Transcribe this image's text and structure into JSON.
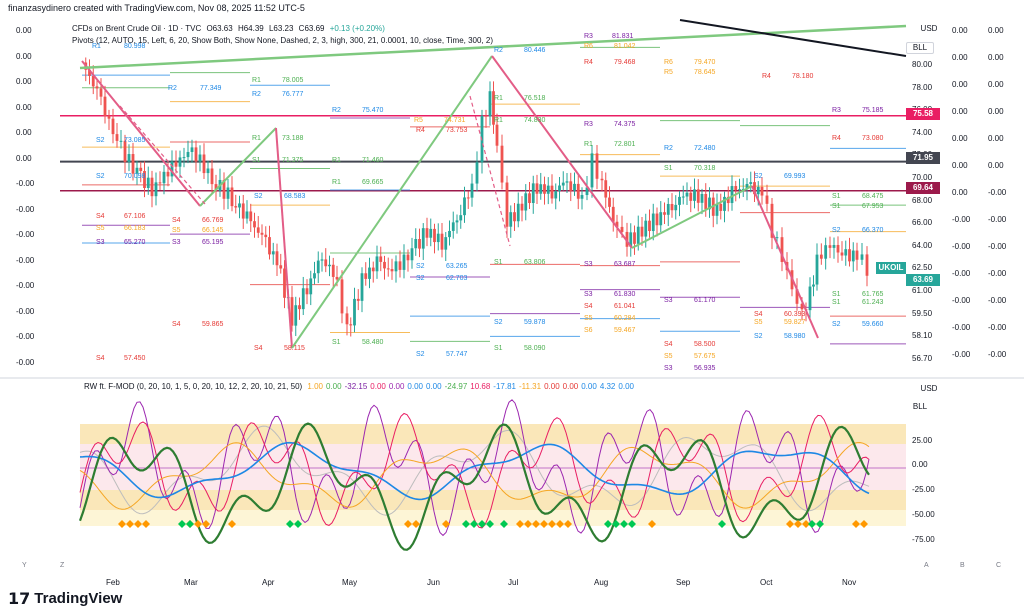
{
  "header": {
    "caption": "finanzasydinero created with TradingView.com, Nov 08, 2025 11:52 UTC-5"
  },
  "legend": {
    "symbol": "CFDs on Brent Crude Oil · 1D · TVC",
    "open": "O63.63",
    "high": "H64.39",
    "low": "L63.23",
    "close": "C63.69",
    "change": "+0.13 (+0.20%)",
    "pivots": "Pivots (12, AUTO, 15, Left, 6, 20, Show Both, Show None, Dashed, 2, 3, high, 300, 21, 0.0001, 10, close, Time, 300, 2)",
    "osc_name": "RW ft. F-MOD (0, 20, 10, 1, 5, 0, 20, 10, 12, 2, 20, 10, 21, 50)",
    "osc_values": [
      {
        "v": "1.00",
        "c": "#f5a623"
      },
      {
        "v": "0.00",
        "c": "#4caf50"
      },
      {
        "v": "-32.15",
        "c": "#7b1fa2"
      },
      {
        "v": "0.00",
        "c": "#e91e63"
      },
      {
        "v": "0.00",
        "c": "#9c27b0"
      },
      {
        "v": "0.00",
        "c": "#1e88e5"
      },
      {
        "v": "0.00",
        "c": "#1e88e5"
      },
      {
        "v": "-24.97",
        "c": "#4caf50"
      },
      {
        "v": "10.68",
        "c": "#e91e63"
      },
      {
        "v": "-17.81",
        "c": "#1e88e5"
      },
      {
        "v": "-11.31",
        "c": "#f5a623"
      },
      {
        "v": "0.00",
        "c": "#e53935"
      },
      {
        "v": "0.00",
        "c": "#e53935"
      },
      {
        "v": "0.00",
        "c": "#1e88e5"
      },
      {
        "v": "4.32",
        "c": "#1e88e5"
      },
      {
        "v": "0.00",
        "c": "#1e88e5"
      }
    ]
  },
  "price_axis": {
    "currency": "USD",
    "unit": "BLL",
    "ticks": [
      "80.00",
      "78.00",
      "76.00",
      "74.00",
      "72.00",
      "70.00",
      "68.00",
      "66.00",
      "64.00",
      "62.50",
      "61.00",
      "59.50",
      "58.10",
      "56.70"
    ],
    "tags": [
      {
        "label": "75.58",
        "color": "#e91e63"
      },
      {
        "label": "71.95",
        "color": "#434651"
      },
      {
        "label": "69.64",
        "color": "#9c1a4b"
      },
      {
        "label": "UKOIL",
        "color": "#26a69a"
      },
      {
        "label": "63.69",
        "color": "#26a69a"
      }
    ]
  },
  "osc_axis": {
    "currency": "USD",
    "unit": "BLL",
    "ticks": [
      "25.00",
      "0.00",
      "-25.00",
      "-50.00",
      "-75.00"
    ]
  },
  "left_levels": [
    "0.00",
    "0.00",
    "0.00",
    "0.00",
    "0.00",
    "0.00",
    "-0.00",
    "-0.00",
    "-0.00",
    "-0.00",
    "-0.00",
    "-0.00",
    "-0.00",
    "-0.00"
  ],
  "right_levels_a": [
    "0.00",
    "0.00",
    "0.00",
    "0.00",
    "0.00",
    "0.00",
    "0.00",
    "-0.00",
    "-0.00",
    "-0.00",
    "-0.00",
    "-0.00",
    "-0.00"
  ],
  "right_levels_b": [
    "0.00",
    "0.00",
    "0.00",
    "0.00",
    "0.00",
    "0.00",
    "-0.00",
    "-0.00",
    "-0.00",
    "-0.00",
    "-0.00",
    "-0.00",
    "-0.00"
  ],
  "time_axis": [
    "Feb",
    "Mar",
    "Apr",
    "May",
    "Jun",
    "Jul",
    "Aug",
    "Sep",
    "Oct",
    "Nov"
  ],
  "corner_letters": [
    "Y",
    "Z",
    "A",
    "B",
    "C"
  ],
  "pivot_labels": [
    {
      "t": "R1",
      "c": "#1e88e5"
    },
    {
      "t": "80.998",
      "c": "#1e88e5"
    },
    {
      "t": "R2",
      "c": "#1e88e5"
    },
    {
      "t": "80.446",
      "c": "#1e88e5"
    },
    {
      "t": "R3",
      "c": "#7b1fa2"
    },
    {
      "t": "81.831",
      "c": "#7b1fa2"
    },
    {
      "t": "R6",
      "c": "#f5a623"
    },
    {
      "t": "81.042",
      "c": "#f5a623"
    },
    {
      "t": "R4",
      "c": "#e53935"
    },
    {
      "t": "79.468",
      "c": "#e53935"
    },
    {
      "t": "R6",
      "c": "#f5a623"
    },
    {
      "t": "79.470",
      "c": "#f5a623"
    },
    {
      "t": "R5",
      "c": "#f5a623"
    },
    {
      "t": "78.645",
      "c": "#f5a623"
    },
    {
      "t": "R4",
      "c": "#e53935"
    },
    {
      "t": "78.180",
      "c": "#e53935"
    },
    {
      "t": "R1",
      "c": "#4caf50"
    },
    {
      "t": "78.005",
      "c": "#4caf50"
    },
    {
      "t": "R2",
      "c": "#1e88e5"
    },
    {
      "t": "77.349",
      "c": "#1e88e5"
    },
    {
      "t": "R2",
      "c": "#1e88e5"
    },
    {
      "t": "76.777",
      "c": "#1e88e5"
    },
    {
      "t": "R1",
      "c": "#4caf50"
    },
    {
      "t": "76.518",
      "c": "#4caf50"
    },
    {
      "t": "R2",
      "c": "#1e88e5"
    },
    {
      "t": "75.470",
      "c": "#1e88e5"
    },
    {
      "t": "R3",
      "c": "#7b1fa2"
    },
    {
      "t": "75.185",
      "c": "#7b1fa2"
    },
    {
      "t": "R1",
      "c": "#4caf50"
    },
    {
      "t": "74.830",
      "c": "#4caf50"
    },
    {
      "t": "R5",
      "c": "#f5a623"
    },
    {
      "t": "74.731",
      "c": "#f5a623"
    },
    {
      "t": "R3",
      "c": "#7b1fa2"
    },
    {
      "t": "74.375",
      "c": "#7b1fa2"
    },
    {
      "t": "R4",
      "c": "#e53935"
    },
    {
      "t": "73.753",
      "c": "#e53935"
    },
    {
      "t": "R1",
      "c": "#4caf50"
    },
    {
      "t": "73.188",
      "c": "#4caf50"
    },
    {
      "t": "S2",
      "c": "#1e88e5"
    },
    {
      "t": "73.085",
      "c": "#1e88e5"
    },
    {
      "t": "R4",
      "c": "#e53935"
    },
    {
      "t": "73.080",
      "c": "#e53935"
    },
    {
      "t": "R1",
      "c": "#4caf50"
    },
    {
      "t": "72.801",
      "c": "#4caf50"
    },
    {
      "t": "R2",
      "c": "#1e88e5"
    },
    {
      "t": "72.480",
      "c": "#1e88e5"
    },
    {
      "t": "S1",
      "c": "#4caf50"
    },
    {
      "t": "71.375",
      "c": "#4caf50"
    },
    {
      "t": "R1",
      "c": "#4caf50"
    },
    {
      "t": "71.460",
      "c": "#4caf50"
    },
    {
      "t": "S1",
      "c": "#4caf50"
    },
    {
      "t": "70.318",
      "c": "#4caf50"
    },
    {
      "t": "S2",
      "c": "#1e88e5"
    },
    {
      "t": "70.098",
      "c": "#1e88e5"
    },
    {
      "t": "R1",
      "c": "#4caf50"
    },
    {
      "t": "69.665",
      "c": "#4caf50"
    },
    {
      "t": "S2",
      "c": "#1e88e5"
    },
    {
      "t": "69.993",
      "c": "#1e88e5"
    },
    {
      "t": "S2",
      "c": "#1e88e5"
    },
    {
      "t": "68.583",
      "c": "#1e88e5"
    },
    {
      "t": "S1",
      "c": "#4caf50"
    },
    {
      "t": "68.475",
      "c": "#4caf50"
    },
    {
      "t": "S1",
      "c": "#4caf50"
    },
    {
      "t": "67.953",
      "c": "#4caf50"
    },
    {
      "t": "S4",
      "c": "#e53935"
    },
    {
      "t": "67.106",
      "c": "#e53935"
    },
    {
      "t": "S4",
      "c": "#e53935"
    },
    {
      "t": "66.769",
      "c": "#e53935"
    },
    {
      "t": "S2",
      "c": "#1e88e5"
    },
    {
      "t": "66.370",
      "c": "#1e88e5"
    },
    {
      "t": "S5",
      "c": "#f5a623"
    },
    {
      "t": "66.183",
      "c": "#f5a623"
    },
    {
      "t": "S5",
      "c": "#f5a623"
    },
    {
      "t": "66.145",
      "c": "#f5a623"
    },
    {
      "t": "S3",
      "c": "#7b1fa2"
    },
    {
      "t": "65.270",
      "c": "#7b1fa2"
    },
    {
      "t": "S3",
      "c": "#7b1fa2"
    },
    {
      "t": "65.195",
      "c": "#7b1fa2"
    },
    {
      "t": "S1",
      "c": "#4caf50"
    },
    {
      "t": "63.806",
      "c": "#4caf50"
    },
    {
      "t": "S3",
      "c": "#7b1fa2"
    },
    {
      "t": "63.687",
      "c": "#7b1fa2"
    },
    {
      "t": "S2",
      "c": "#1e88e5"
    },
    {
      "t": "63.265",
      "c": "#1e88e5"
    },
    {
      "t": "S2",
      "c": "#1e88e5"
    },
    {
      "t": "62.703",
      "c": "#1e88e5"
    },
    {
      "t": "S3",
      "c": "#7b1fa2"
    },
    {
      "t": "61.830",
      "c": "#7b1fa2"
    },
    {
      "t": "S1",
      "c": "#4caf50"
    },
    {
      "t": "61.765",
      "c": "#4caf50"
    },
    {
      "t": "S3",
      "c": "#7b1fa2"
    },
    {
      "t": "61.170",
      "c": "#7b1fa2"
    },
    {
      "t": "S1",
      "c": "#4caf50"
    },
    {
      "t": "61.243",
      "c": "#4caf50"
    },
    {
      "t": "S4",
      "c": "#e53935"
    },
    {
      "t": "61.041",
      "c": "#e53935"
    },
    {
      "t": "S4",
      "c": "#e53935"
    },
    {
      "t": "60.393",
      "c": "#e53935"
    },
    {
      "t": "S5",
      "c": "#f5a623"
    },
    {
      "t": "60.284",
      "c": "#f5a623"
    },
    {
      "t": "S4",
      "c": "#e53935"
    },
    {
      "t": "59.865",
      "c": "#e53935"
    },
    {
      "t": "S2",
      "c": "#1e88e5"
    },
    {
      "t": "59.878",
      "c": "#1e88e5"
    },
    {
      "t": "S5",
      "c": "#f5a623"
    },
    {
      "t": "59.827",
      "c": "#f5a623"
    },
    {
      "t": "S2",
      "c": "#1e88e5"
    },
    {
      "t": "59.660",
      "c": "#1e88e5"
    },
    {
      "t": "S6",
      "c": "#f5a623"
    },
    {
      "t": "59.467",
      "c": "#f5a623"
    },
    {
      "t": "S1",
      "c": "#4caf50"
    },
    {
      "t": "58.480",
      "c": "#4caf50"
    },
    {
      "t": "S4",
      "c": "#e53935"
    },
    {
      "t": "58.500",
      "c": "#e53935"
    },
    {
      "t": "S4",
      "c": "#e53935"
    },
    {
      "t": "58.115",
      "c": "#e53935"
    },
    {
      "t": "S1",
      "c": "#4caf50"
    },
    {
      "t": "58.090",
      "c": "#4caf50"
    },
    {
      "t": "S2",
      "c": "#1e88e5"
    },
    {
      "t": "57.747",
      "c": "#1e88e5"
    },
    {
      "t": "S5",
      "c": "#f5a623"
    },
    {
      "t": "57.675",
      "c": "#f5a623"
    },
    {
      "t": "S4",
      "c": "#e53935"
    },
    {
      "t": "57.450",
      "c": "#e53935"
    },
    {
      "t": "S3",
      "c": "#7b1fa2"
    },
    {
      "t": "56.935",
      "c": "#7b1fa2"
    },
    {
      "t": "S2",
      "c": "#1e88e5"
    },
    {
      "t": "58.980",
      "c": "#1e88e5"
    }
  ],
  "colors": {
    "up": "#26a69a",
    "down": "#ef5350",
    "trend_up": "#7fc97f",
    "trend_down": "#e35d87",
    "band_ob": "#f7d58a",
    "band_os": "#f7d58a",
    "band_mid": "#fde7ea"
  }
}
